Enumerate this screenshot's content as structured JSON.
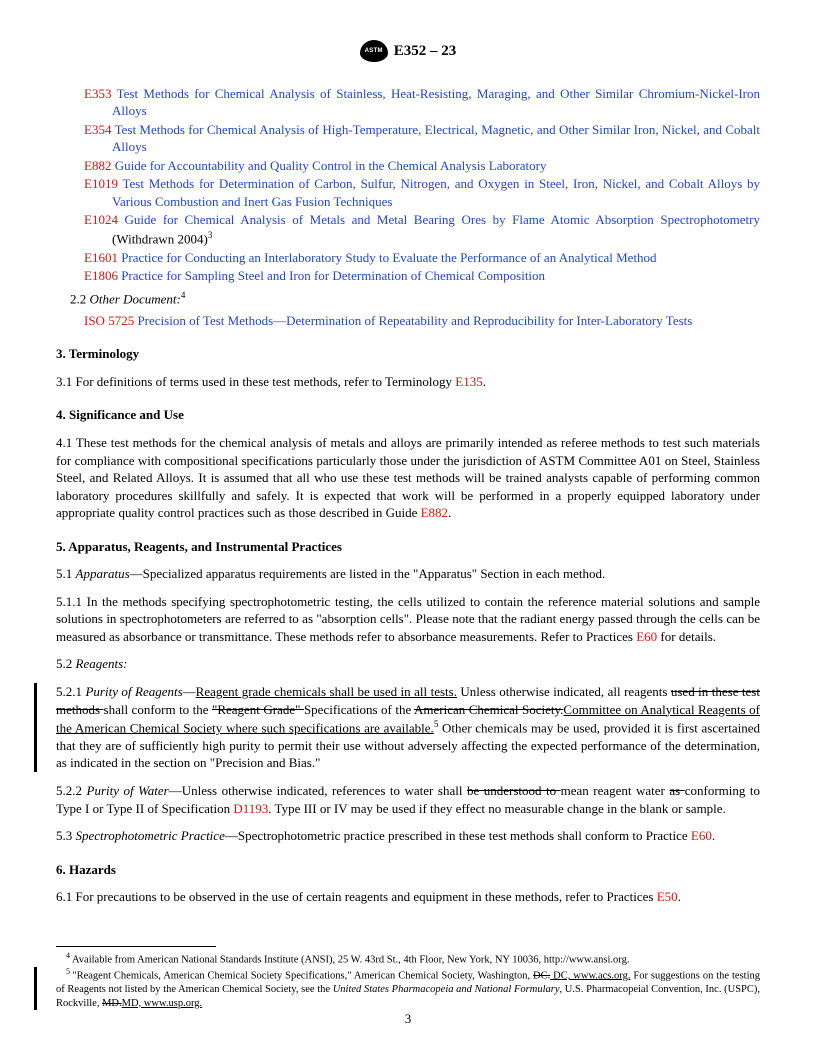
{
  "header": {
    "doc_number": "E352 – 23"
  },
  "refs": [
    {
      "code": "E353",
      "title": "Test Methods for Chemical Analysis of Stainless, Heat-Resisting, Maraging, and Other Similar Chromium-Nickel-Iron Alloys"
    },
    {
      "code": "E354",
      "title": "Test Methods for Chemical Analysis of High-Temperature, Electrical, Magnetic, and Other Similar Iron, Nickel, and Cobalt Alloys"
    },
    {
      "code": "E882",
      "title": "Guide for Accountability and Quality Control in the Chemical Analysis Laboratory"
    },
    {
      "code": "E1019",
      "title": "Test Methods for Determination of Carbon, Sulfur, Nitrogen, and Oxygen in Steel, Iron, Nickel, and Cobalt Alloys by Various Combustion and Inert Gas Fusion Techniques"
    },
    {
      "code": "E1024",
      "title": "Guide for Chemical Analysis of Metals and Metal Bearing Ores by Flame Atomic Absorption Spectrophotometry",
      "suffix_plain": " (Withdrawn 2004)",
      "sup": "3"
    },
    {
      "code": "E1601",
      "title": "Practice for Conducting an Interlaboratory Study to Evaluate the Performance of an Analytical Method"
    },
    {
      "code": "E1806",
      "title": "Practice for Sampling Steel and Iron for Determination of Chemical Composition"
    }
  ],
  "other_doc": {
    "num": "2.2",
    "label": "Other Document:",
    "sup": "4"
  },
  "iso_ref": {
    "code": "ISO 5725",
    "title": "Precision of Test Methods—Determination of Repeatability and Reproducibility for Inter-Laboratory Tests"
  },
  "s3": {
    "head": "3.  Terminology",
    "p31_a": "3.1  For definitions of terms used in these test methods, refer to Terminology ",
    "p31_link": "E135",
    "p31_b": "."
  },
  "s4": {
    "head": "4.  Significance and Use",
    "p41_a": "4.1  These test methods for the chemical analysis of metals and alloys are primarily intended as referee methods to test such materials for compliance with compositional specifications particularly those under the jurisdiction of ASTM Committee A01 on Steel, Stainless Steel, and Related Alloys. It is assumed that all who use these test methods will be trained analysts capable of performing common laboratory procedures skillfully and safely. It is expected that work will be performed in a properly equipped laboratory under appropriate quality control practices such as those described in Guide ",
    "p41_link": "E882",
    "p41_b": "."
  },
  "s5": {
    "head": "5.  Apparatus, Reagents, and Instrumental Practices",
    "p51_label": "Apparatus",
    "p51_body": "—Specialized apparatus requirements are listed in the \"Apparatus\" Section in each method.",
    "p511_a": "5.1.1  In the methods specifying spectrophotometric testing, the cells utilized to contain the reference material solutions and sample solutions in spectrophotometers are referred to as \"absorption cells\". Please note that the radiant energy passed through the cells can be measured as absorbance or transmittance. These methods refer to absorbance measurements. Refer to Practices ",
    "p511_link": "E60",
    "p511_b": " for details.",
    "p52_label": "Reagents:",
    "p521_lead": "5.2.1  ",
    "p521_name": "Purity of Reagents",
    "p521_dash": "—",
    "p521_u1": "Reagent grade chemicals shall be used in all tests.",
    "p521_mid1": " Unless otherwise indicated, all reagents ",
    "p521_s1": "used in these test methods ",
    "p521_mid2": "shall conform to the ",
    "p521_s2": "\"Reagent Grade\" ",
    "p521_mid2b": "Specifications of the ",
    "p521_s3": "American Chemical Society.",
    "p521_u2": "Committee on Analytical Reagents of the American Chemical Society where such specifications are available.",
    "p521_sup": "5",
    "p521_tail": " Other chemicals may be used, provided it is first ascertained that they are of sufficiently high purity to permit their use without adversely affecting the expected performance of the determination, as indicated in the section on \"Precision and Bias.\"",
    "p522_lead": "5.2.2  ",
    "p522_name": "Purity of Water",
    "p522_a": "—Unless otherwise indicated, references to water shall ",
    "p522_s1": "be understood to ",
    "p522_b": "mean reagent water ",
    "p522_s2": "as ",
    "p522_c": "conforming to Type I or Type II of Specification ",
    "p522_link": "D1193",
    "p522_d": ". Type III or IV may be used if they effect no measurable change in the blank or sample.",
    "p53_lead": "5.3  ",
    "p53_name": "Spectrophotometric Practice",
    "p53_a": "—Spectrophotometric practice prescribed in these test methods shall conform to Practice ",
    "p53_link": "E60",
    "p53_b": "."
  },
  "s6": {
    "head": "6.  Hazards",
    "p61_a": "6.1  For precautions to be observed in the use of certain reagents and equipment in these methods, refer to Practices ",
    "p61_link": "E50",
    "p61_b": "."
  },
  "footnotes": {
    "f4": "Available from American National Standards Institute (ANSI), 25 W. 43rd St., 4th Floor, New York, NY 10036, http://www.ansi.org.",
    "f5_a": "\"Reagent Chemicals, American Chemical Society Specifications,\" American Chemical Society, Washington, ",
    "f5_s1": "DC.",
    "f5_u1": " DC, www.acs.org.",
    "f5_b": " For suggestions on the testing of Reagents not listed by the American Chemical Society, see the ",
    "f5_i": "United States Pharmacopeia and National Formulary",
    "f5_c": ", U.S. Pharmacopeial Convention, Inc. (USPC), Rockville, ",
    "f5_s2": "MD.",
    "f5_u2": "MD, www.usp.org."
  },
  "page_number": "3"
}
